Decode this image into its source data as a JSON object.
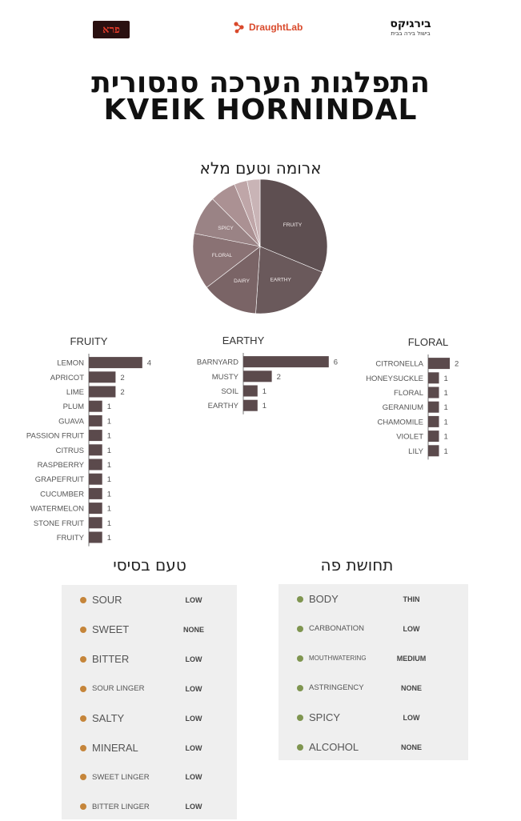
{
  "logos": {
    "left": "פרא",
    "middle": "DraughtLab",
    "right_main": "בירגיקס",
    "right_sub": "בישול בירה בבית"
  },
  "title_hebrew": "התפלגות הערכה סנסורית",
  "title_english": "KVEIK HORNINDAL",
  "colors": {
    "pie": [
      "#5e4f51",
      "#6a595b",
      "#7a6466",
      "#8a7274",
      "#9a8385",
      "#ab9193",
      "#bfa6a8",
      "#c9b4b6"
    ],
    "bar": "#5b4a4c",
    "taste_dot": "#c5853a",
    "mouthfeel_dot": "#7f9550"
  },
  "chart_data": [
    {
      "type": "pie",
      "title": "ארומה וטעם מלא",
      "categories": [
        "FRUITY",
        "EARTHY",
        "DAIRY",
        "FLORAL",
        "SPICY",
        "",
        "",
        " "
      ],
      "values": [
        30,
        19,
        13,
        13,
        9,
        6,
        3,
        3
      ]
    },
    {
      "type": "bar",
      "orientation": "horizontal",
      "title": "FRUITY",
      "categories": [
        "LEMON",
        "APRICOT",
        "LIME",
        "PLUM",
        "GUAVA",
        "PASSION FRUIT",
        "CITRUS",
        "RASPBERRY",
        "GRAPEFRUIT",
        "CUCUMBER",
        "WATERMELON",
        "STONE FRUIT",
        "FRUITY"
      ],
      "values": [
        4,
        2,
        2,
        1,
        1,
        1,
        1,
        1,
        1,
        1,
        1,
        1,
        1
      ]
    },
    {
      "type": "bar",
      "orientation": "horizontal",
      "title": "EARTHY",
      "categories": [
        "BARNYARD",
        "MUSTY",
        "SOIL",
        "EARTHY"
      ],
      "values": [
        6,
        2,
        1,
        1
      ]
    },
    {
      "type": "bar",
      "orientation": "horizontal",
      "title": "FLORAL",
      "categories": [
        "CITRONELLA",
        "HONEYSUCKLE",
        "FLORAL",
        "GERANIUM",
        "CHAMOMILE",
        "VIOLET",
        "LILY"
      ],
      "values": [
        2,
        1,
        1,
        1,
        1,
        1,
        1
      ]
    }
  ],
  "basic_taste": {
    "title": "טעם בסיסי",
    "rows": [
      {
        "label": "SOUR",
        "value": "LOW",
        "small": false
      },
      {
        "label": "SWEET",
        "value": "NONE",
        "small": false
      },
      {
        "label": "BITTER",
        "value": "LOW",
        "small": false
      },
      {
        "label": "SOUR LINGER",
        "value": "LOW",
        "small": true
      },
      {
        "label": "SALTY",
        "value": "LOW",
        "small": false
      },
      {
        "label": "MINERAL",
        "value": "LOW",
        "small": false
      },
      {
        "label": "SWEET LINGER",
        "value": "LOW",
        "small": true
      },
      {
        "label": "BITTER LINGER",
        "value": "LOW",
        "small": true
      }
    ]
  },
  "mouthfeel": {
    "title": "תחושת פה",
    "rows": [
      {
        "label": "BODY",
        "value": "THIN",
        "size": "l"
      },
      {
        "label": "CARBONATION",
        "value": "LOW",
        "size": "s"
      },
      {
        "label": "MOUTHWATERING",
        "value": "MEDIUM",
        "size": "xs"
      },
      {
        "label": "ASTRINGENCY",
        "value": "NONE",
        "size": "s"
      },
      {
        "label": "SPICY",
        "value": "LOW",
        "size": "l"
      },
      {
        "label": "ALCOHOL",
        "value": "NONE",
        "size": "l"
      }
    ]
  }
}
